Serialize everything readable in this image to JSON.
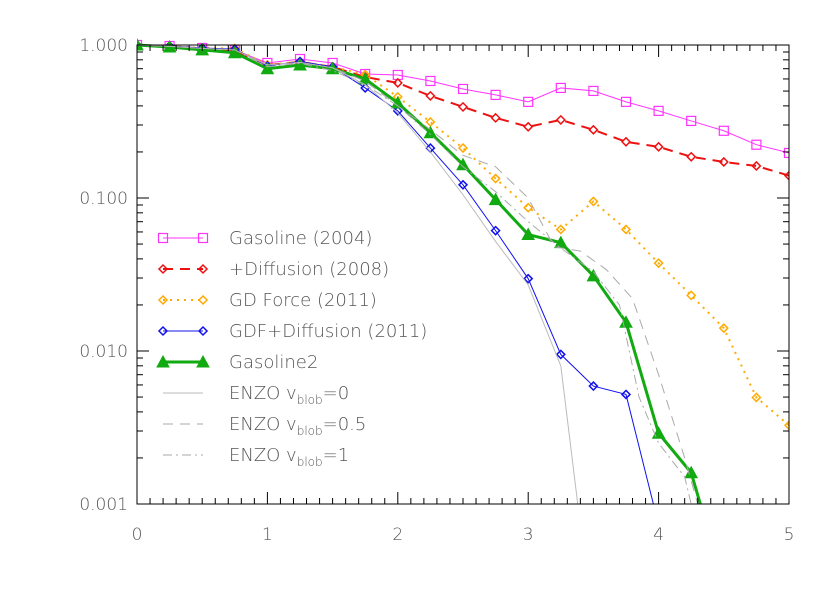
{
  "chart_data": {
    "type": "line",
    "title": "",
    "xlabel": "",
    "ylabel": "",
    "xlim": [
      0,
      5
    ],
    "ylim": [
      0.001,
      1.0
    ],
    "yscale": "log",
    "grid": false,
    "legend_placement": "center-left",
    "x_ticks": [
      "0",
      "1",
      "2",
      "3",
      "4",
      "5"
    ],
    "y_ticks": [
      "1.000",
      "0.100",
      "0.010",
      "0.001"
    ],
    "y_tick_values": [
      1.0,
      0.1,
      0.01,
      0.001
    ],
    "series": [
      {
        "name": "Gasoline (2004)",
        "color": "#ff33ff",
        "style": "solid",
        "marker": "square",
        "width": 1,
        "x": [
          0,
          0.25,
          0.5,
          0.75,
          1,
          1.25,
          1.5,
          1.75,
          2,
          2.25,
          2.5,
          2.75,
          3,
          3.25,
          3.5,
          3.75,
          4,
          4.25,
          4.5,
          4.75,
          5
        ],
        "y": [
          1.0,
          0.985,
          0.956,
          0.928,
          0.763,
          0.81,
          0.763,
          0.646,
          0.637,
          0.582,
          0.516,
          0.472,
          0.425,
          0.524,
          0.501,
          0.425,
          0.371,
          0.319,
          0.275,
          0.223,
          0.197
        ]
      },
      {
        "name": "+Diffusion (2008)",
        "color": "#ee1111",
        "style": "dashed",
        "marker": "diamond",
        "width": 2,
        "x": [
          0,
          0.25,
          0.5,
          0.75,
          1,
          1.25,
          1.5,
          1.75,
          2,
          2.25,
          2.5,
          2.75,
          3,
          3.25,
          3.5,
          3.75,
          4,
          4.25,
          4.5,
          4.75,
          5
        ],
        "y": [
          1.0,
          0.985,
          0.94,
          0.914,
          0.74,
          0.775,
          0.719,
          0.618,
          0.565,
          0.465,
          0.394,
          0.334,
          0.292,
          0.324,
          0.279,
          0.233,
          0.216,
          0.186,
          0.172,
          0.162,
          0.14
        ]
      },
      {
        "name": "GD Force (2011)",
        "color": "#ffaa00",
        "style": "dotted",
        "marker": "diamond",
        "width": 2,
        "x": [
          0,
          0.25,
          0.5,
          0.75,
          1,
          1.25,
          1.5,
          1.75,
          2,
          2.25,
          2.5,
          2.75,
          3,
          3.25,
          3.5,
          3.75,
          4,
          4.25,
          4.5,
          4.75,
          5
        ],
        "y": [
          1.0,
          0.985,
          0.956,
          0.95,
          0.74,
          0.78,
          0.72,
          0.64,
          0.458,
          0.314,
          0.212,
          0.134,
          0.0865,
          0.0623,
          0.095,
          0.0623,
          0.0375,
          0.0231,
          0.0141,
          0.00497,
          0.00327
        ]
      },
      {
        "name": "GDF+Diffusion (2011)",
        "color": "#1111ee",
        "style": "solid",
        "marker": "diamond",
        "width": 1,
        "x": [
          0,
          0.25,
          0.5,
          0.75,
          1,
          1.25,
          1.5,
          1.75,
          2,
          2.25,
          2.5,
          2.75,
          3,
          3.25,
          3.5,
          3.75,
          3.96
        ],
        "y": [
          1.0,
          0.985,
          0.956,
          0.94,
          0.73,
          0.78,
          0.72,
          0.524,
          0.371,
          0.212,
          0.122,
          0.0612,
          0.0297,
          0.0095,
          0.0059,
          0.0052,
          0.001
        ],
        "marker_count": 16
      },
      {
        "name": "Gasoline2",
        "color": "#11aa11",
        "style": "solid",
        "marker": "triangle",
        "width": 3,
        "x": [
          0,
          0.25,
          0.5,
          0.75,
          1,
          1.25,
          1.5,
          1.75,
          2,
          2.25,
          2.5,
          2.75,
          3,
          3.25,
          3.5,
          3.75,
          4,
          4.25,
          4.32
        ],
        "y": [
          1.0,
          0.97,
          0.93,
          0.89,
          0.7,
          0.74,
          0.7,
          0.6,
          0.418,
          0.267,
          0.165,
          0.0976,
          0.0577,
          0.0511,
          0.031,
          0.0154,
          0.0029,
          0.0016,
          0.001
        ],
        "marker_count": 18
      },
      {
        "name": "ENZO v",
        "sub": "blob",
        "suffix": "=0",
        "color": "#bbbbbb",
        "style": "solid",
        "marker": "none",
        "width": 1,
        "x": [
          0,
          0.25,
          0.5,
          0.75,
          1,
          1.25,
          1.5,
          1.75,
          2,
          2.25,
          2.5,
          2.75,
          3,
          3.25,
          3.38
        ],
        "y": [
          1.0,
          0.98,
          0.95,
          0.93,
          0.74,
          0.77,
          0.71,
          0.55,
          0.36,
          0.2,
          0.105,
          0.052,
          0.027,
          0.008,
          0.001
        ]
      },
      {
        "name": "ENZO v",
        "sub": "blob",
        "suffix": "=0.5",
        "color": "#aaaaaa",
        "style": "dashed",
        "marker": "none",
        "width": 1,
        "x": [
          0,
          0.25,
          0.5,
          0.75,
          1,
          1.25,
          1.5,
          1.75,
          2,
          2.25,
          2.5,
          2.75,
          3,
          3.2,
          3.4,
          3.6,
          3.8,
          4,
          4.2,
          4.3
        ],
        "y": [
          1.0,
          0.98,
          0.95,
          0.93,
          0.74,
          0.77,
          0.71,
          0.58,
          0.4,
          0.28,
          0.19,
          0.16,
          0.1,
          0.048,
          0.045,
          0.034,
          0.022,
          0.007,
          0.002,
          0.001
        ]
      },
      {
        "name": "ENZO v",
        "sub": "blob",
        "suffix": "=1",
        "color": "#aaaaaa",
        "style": "dashdot",
        "marker": "none",
        "width": 1,
        "x": [
          0,
          0.25,
          0.5,
          0.75,
          1,
          1.25,
          1.5,
          1.75,
          2,
          2.25,
          2.5,
          2.75,
          3,
          3.25,
          3.5,
          3.7,
          3.85,
          4,
          4.2,
          4.25
        ],
        "y": [
          1.0,
          0.98,
          0.95,
          0.93,
          0.72,
          0.76,
          0.68,
          0.55,
          0.4,
          0.26,
          0.16,
          0.11,
          0.07,
          0.047,
          0.033,
          0.02,
          0.005,
          0.0025,
          0.0015,
          0.001
        ]
      }
    ]
  }
}
